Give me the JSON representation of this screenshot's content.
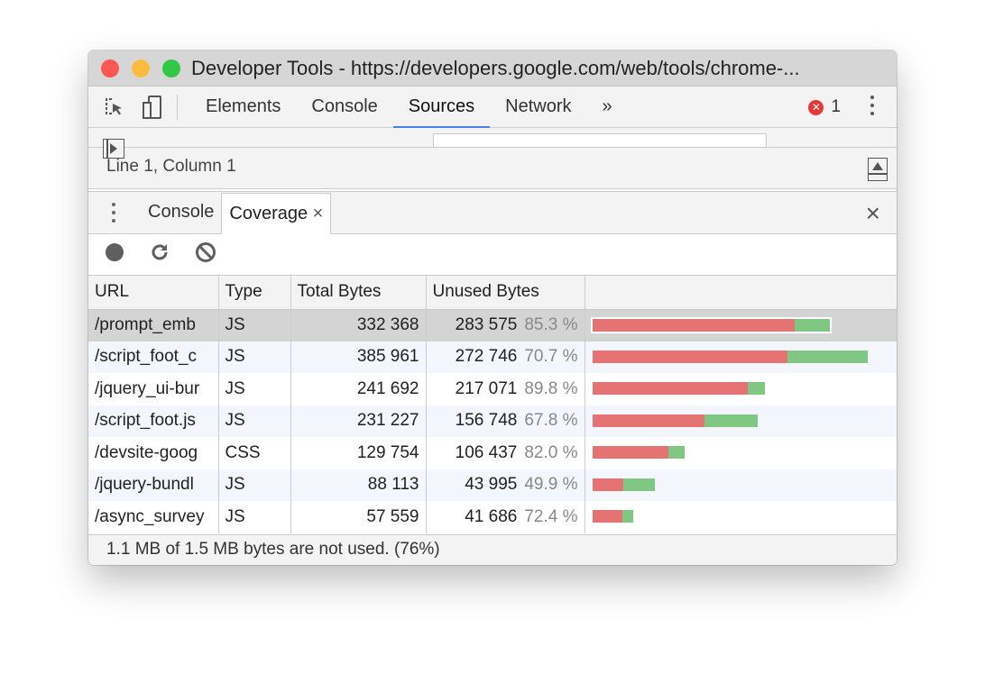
{
  "window": {
    "title": "Developer Tools - https://developers.google.com/web/tools/chrome-...",
    "lights": [
      "#fc5753",
      "#fdbc40",
      "#33c748"
    ]
  },
  "toolbar": {
    "tabs": [
      "Elements",
      "Console",
      "Sources",
      "Network"
    ],
    "active": "Sources",
    "more": "»",
    "error_count": "1"
  },
  "sources": {
    "status": "Line 1, Column 1"
  },
  "drawer": {
    "tabs": [
      "Console",
      "Coverage"
    ],
    "active": "Coverage",
    "close_tab": "×",
    "close": "×"
  },
  "coverage": {
    "columns": [
      "URL",
      "Type",
      "Total Bytes",
      "Unused Bytes",
      ""
    ],
    "rows": [
      {
        "url": "/prompt_emb",
        "type": "JS",
        "total": "332 368",
        "unused": "283 575",
        "pct": "85.3 %",
        "total_n": 332368,
        "unused_n": 283575
      },
      {
        "url": "/script_foot_c",
        "type": "JS",
        "total": "385 961",
        "unused": "272 746",
        "pct": "70.7 %",
        "total_n": 385961,
        "unused_n": 272746
      },
      {
        "url": "/jquery_ui-bur",
        "type": "JS",
        "total": "241 692",
        "unused": "217 071",
        "pct": "89.8 %",
        "total_n": 241692,
        "unused_n": 217071
      },
      {
        "url": "/script_foot.js",
        "type": "JS",
        "total": "231 227",
        "unused": "156 748",
        "pct": "67.8 %",
        "total_n": 231227,
        "unused_n": 156748
      },
      {
        "url": "/devsite-goog",
        "type": "CSS",
        "total": "129 754",
        "unused": "106 437",
        "pct": "82.0 %",
        "total_n": 129754,
        "unused_n": 106437
      },
      {
        "url": "/jquery-bundl",
        "type": "JS",
        "total": "88 113",
        "unused": "43 995",
        "pct": "49.9 %",
        "total_n": 88113,
        "unused_n": 43995
      },
      {
        "url": "/async_survey",
        "type": "JS",
        "total": "57 559",
        "unused": "41 686",
        "pct": "72.4 %",
        "total_n": 57559,
        "unused_n": 41686
      }
    ],
    "selected_row": 0,
    "colors": {
      "unused": "#e57373",
      "used": "#81c784"
    },
    "summary": "1.1 MB of 1.5 MB bytes are not used. (76%)"
  }
}
